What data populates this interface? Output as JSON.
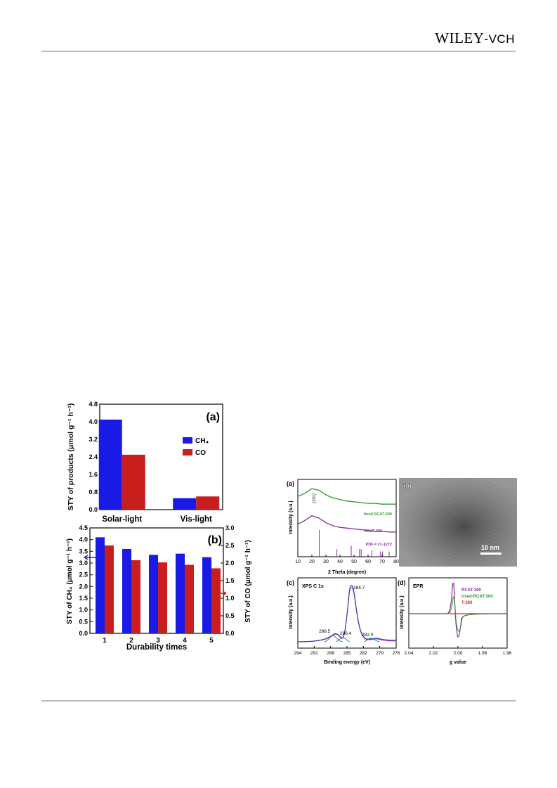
{
  "header": {
    "publisher_main": "WILEY",
    "publisher_sep": "-",
    "publisher_sub": "VCH"
  },
  "colors": {
    "ch4": "#1a1ae6",
    "co": "#c81e1e",
    "used": "#2a9a2a",
    "rcat": "#8a2c9c",
    "t300": "#e02424",
    "fit": "#3a3aa0"
  },
  "figure_left": {
    "panel_a": {
      "label": "(a)",
      "ylabel": "STY of products (μmol g⁻¹ h⁻¹)",
      "yticks": [
        "0.0",
        "0.8",
        "1.6",
        "2.4",
        "3.2",
        "4.0",
        "4.8"
      ],
      "legend": [
        "CH₄",
        "CO"
      ]
    },
    "panel_b": {
      "label": "(b)",
      "ylabel_left": "STY of CH₄ (μmol g⁻¹ h⁻¹)",
      "ylabel_right": "STY of CO (μmol g⁻¹ h⁻¹)",
      "xlabel": "Durability times",
      "yticks_left": [
        "0.0",
        "0.5",
        "1.0",
        "1.5",
        "2.0",
        "2.5",
        "3.0",
        "3.5",
        "4.0",
        "4.5"
      ],
      "yticks_right": [
        "0.0",
        "0.5",
        "1.0",
        "1.5",
        "2.0",
        "2.5",
        "3.0"
      ]
    }
  },
  "figure_right": {
    "panel_a": {
      "label": "(a)",
      "peak": "(101)",
      "ylabel": "Intensity (a.u.)",
      "xlabel": "2 Theta (degree)",
      "xticks": [
        "10",
        "20",
        "30",
        "40",
        "50",
        "60",
        "70",
        "80"
      ],
      "trace_labels": [
        "Used RCAT-300",
        "RCAT-300",
        "PDF # 21-1272"
      ]
    },
    "panel_b": {
      "label": "(b)",
      "scale": "10 nm"
    },
    "panel_c": {
      "label": "(c)",
      "title": "XPS C 1s",
      "ylabel": "Intensity (a.u.)",
      "xlabel": "Binding energy (eV)",
      "xticks": [
        "294",
        "291",
        "288",
        "285",
        "282",
        "279",
        "276"
      ],
      "peaks": [
        "284.7",
        "288.5",
        "286.4",
        "282.0"
      ]
    },
    "panel_d": {
      "label": "(d)",
      "title": "EPR",
      "ylabel": "Intensity (a.u.)",
      "xlabel": "g value",
      "xticks": [
        "2.04",
        "2.02",
        "2.00",
        "1.98",
        "1.96"
      ],
      "legend": [
        "RCAT-300",
        "Used-RCAT-300",
        "T-300"
      ]
    }
  },
  "chart_data": [
    {
      "type": "bar",
      "categories": [
        "Solar-light",
        "Vis-light"
      ],
      "series": [
        {
          "name": "CH₄",
          "values": [
            4.1,
            0.52
          ]
        },
        {
          "name": "CO",
          "values": [
            2.5,
            0.6
          ]
        }
      ],
      "ylabel": "STY of products (μmol g⁻¹ h⁻¹)",
      "ylim": [
        0,
        4.8
      ]
    },
    {
      "type": "bar",
      "categories": [
        "1",
        "2",
        "3",
        "4",
        "5"
      ],
      "series": [
        {
          "name": "CH₄",
          "values": [
            4.1,
            3.6,
            3.35,
            3.4,
            3.25
          ],
          "axis": "left",
          "ylim": [
            0,
            4.5
          ]
        },
        {
          "name": "CO",
          "values": [
            2.5,
            2.08,
            2.02,
            1.95,
            1.85
          ],
          "axis": "right",
          "ylim": [
            0,
            3.0
          ]
        }
      ],
      "xlabel": "Durability times",
      "ylabel": "STY of CH₄ (μmol g⁻¹ h⁻¹)",
      "y2label": "STY of CO (μmol g⁻¹ h⁻¹)"
    },
    {
      "type": "line",
      "x": [
        10,
        15,
        20,
        25,
        30,
        35,
        40,
        45,
        50,
        55,
        60,
        65,
        70,
        75,
        80
      ],
      "series": [
        {
          "name": "Used RCAT-300",
          "values": [
            0.78,
            0.82,
            0.88,
            0.86,
            0.8,
            0.76,
            0.74,
            0.72,
            0.71,
            0.7,
            0.69,
            0.69,
            0.68,
            0.68,
            0.68
          ]
        },
        {
          "name": "RCAT-300",
          "values": [
            0.42,
            0.47,
            0.53,
            0.5,
            0.44,
            0.4,
            0.38,
            0.37,
            0.36,
            0.35,
            0.34,
            0.33,
            0.33,
            0.32,
            0.32
          ]
        }
      ],
      "reference": {
        "name": "PDF # 21-1272",
        "x": [
          25.3,
          37.8,
          48.0,
          53.9,
          55.1,
          62.7,
          68.8,
          70.3,
          75.0
        ],
        "values": [
          1.0,
          0.2,
          0.35,
          0.2,
          0.2,
          0.15,
          0.1,
          0.1,
          0.1
        ]
      },
      "xlabel": "2 Theta (degree)",
      "ylabel": "Intensity (a.u.)",
      "xlim": [
        10,
        80
      ]
    }
  ]
}
